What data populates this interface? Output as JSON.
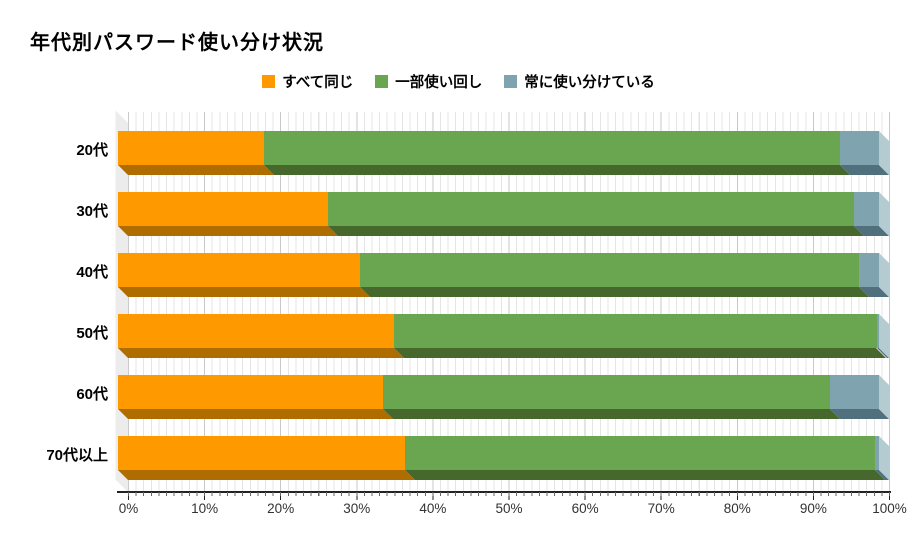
{
  "title": "年代別パスワード使い分け状況",
  "chart_data": {
    "type": "bar",
    "subtype": "horizontal-stacked-3d",
    "title": "年代別パスワード使い分け状況",
    "categories": [
      "20代",
      "30代",
      "40代",
      "50代",
      "60代",
      "70代以上"
    ],
    "series": [
      {
        "name": "すべて同じ",
        "color": "#FF9900",
        "dark": "#AF6D00",
        "values": [
          19.2,
          27.6,
          31.8,
          36.3,
          34.8,
          37.7
        ]
      },
      {
        "name": "一部使い回し",
        "color": "#6AA64F",
        "dark": "#47682C",
        "values": [
          75.7,
          69.1,
          65.6,
          63.4,
          58.8,
          61.8
        ]
      },
      {
        "name": "常に使い分けている",
        "color": "#7FA4AF",
        "dark": "#50707D",
        "values": [
          5.1,
          3.3,
          2.6,
          0.3,
          6.4,
          0.5
        ]
      }
    ],
    "end_cap_color": "#B5CBD2",
    "xlabel": "",
    "ylabel": "",
    "xlim": [
      0,
      100
    ],
    "x_ticks": [
      "0%",
      "10%",
      "20%",
      "30%",
      "40%",
      "50%",
      "60%",
      "70%",
      "80%",
      "90%",
      "100%"
    ],
    "grid": "vertical, minor every 1%, major every 10%",
    "legend_position": "top-center",
    "units": "%"
  }
}
